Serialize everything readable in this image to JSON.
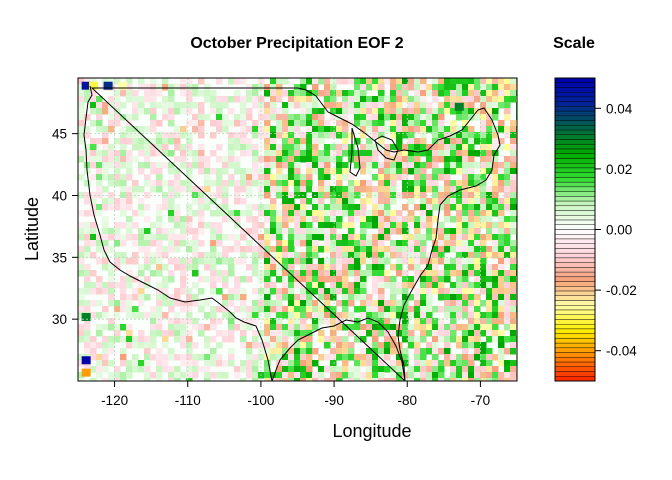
{
  "chart_data": {
    "type": "heatmap",
    "title": "October Precipitation EOF 2",
    "xlabel": "Longitude",
    "ylabel": "Latitude",
    "xlim": [
      -125,
      -65
    ],
    "ylim": [
      25,
      49.5
    ],
    "x_ticks": [
      -120,
      -110,
      -100,
      -90,
      -80,
      -70
    ],
    "y_ticks": [
      30,
      35,
      40,
      45
    ],
    "grid": true,
    "legend": {
      "title": "Scale",
      "position": "right",
      "range": [
        -0.05,
        0.05
      ],
      "ticks": [
        0.04,
        0.02,
        0.0,
        -0.02,
        -0.04
      ],
      "tick_labels": [
        "0.04",
        "0.02",
        "0.00",
        "-0.02",
        "-0.04"
      ],
      "colors_low_to_high": [
        "#ff2200",
        "#ff8800",
        "#ffee00",
        "#ffffaa",
        "#f5a07a",
        "#ffd5dd",
        "#ffffff",
        "#c8f5c0",
        "#33dd33",
        "#00aa00",
        "#006644",
        "#002299",
        "#0000aa"
      ]
    },
    "field_description_values": {
      "west_of_minus_100": "near 0 with weak positive and negative speckles",
      "east_of_minus_100": "mixed -0.02 to 0.02 speckles",
      "extreme_low": -0.05,
      "extreme_high": 0.05
    }
  }
}
